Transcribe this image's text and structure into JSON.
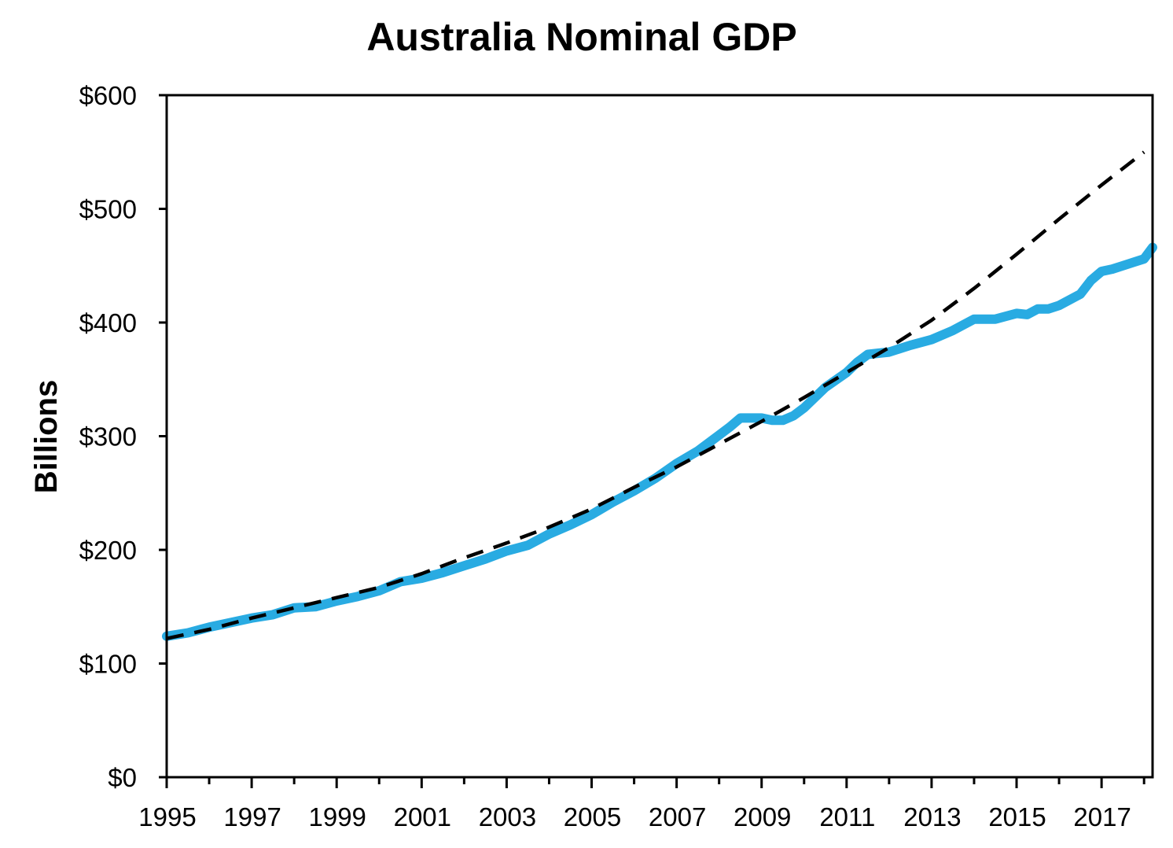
{
  "chart_data": {
    "type": "line",
    "title": "Australia Nominal GDP",
    "xlabel": "",
    "ylabel": "Billions",
    "xlim": [
      1995,
      2018.2
    ],
    "ylim": [
      0,
      600
    ],
    "y_ticks": [
      0,
      100,
      200,
      300,
      400,
      500,
      600
    ],
    "y_tick_labels": [
      "$0",
      "$100",
      "$200",
      "$300",
      "$400",
      "$500",
      "$600"
    ],
    "x_ticks": [
      1995,
      1997,
      1999,
      2001,
      2003,
      2005,
      2007,
      2009,
      2011,
      2013,
      2015,
      2017
    ],
    "x_tick_labels": [
      "1995",
      "1997",
      "1999",
      "2001",
      "2003",
      "2005",
      "2007",
      "2009",
      "2011",
      "2013",
      "2015",
      "2017"
    ],
    "legend": "none",
    "grid": false,
    "series": [
      {
        "style": "solid",
        "color": "#29abe2",
        "x": [
          1995.0,
          1995.5,
          1996.0,
          1996.5,
          1997.0,
          1997.5,
          1998.0,
          1998.5,
          1999.0,
          1999.5,
          2000.0,
          2000.5,
          2001.0,
          2001.5,
          2002.0,
          2002.5,
          2003.0,
          2003.5,
          2004.0,
          2004.5,
          2005.0,
          2005.5,
          2006.0,
          2006.5,
          2007.0,
          2007.5,
          2008.0,
          2008.25,
          2008.5,
          2008.75,
          2009.0,
          2009.25,
          2009.5,
          2009.75,
          2010.0,
          2010.5,
          2011.0,
          2011.25,
          2011.5,
          2011.75,
          2012.0,
          2012.5,
          2013.0,
          2013.5,
          2014.0,
          2014.5,
          2015.0,
          2015.25,
          2015.5,
          2015.75,
          2016.0,
          2016.5,
          2016.75,
          2017.0,
          2017.25,
          2017.5,
          2017.75,
          2018.0,
          2018.2
        ],
        "values": [
          124,
          127,
          132,
          136,
          140,
          143,
          149,
          150,
          155,
          159,
          164,
          172,
          175,
          180,
          186,
          192,
          199,
          204,
          214,
          222,
          231,
          242,
          252,
          263,
          276,
          287,
          301,
          308,
          316,
          316,
          316,
          314,
          314,
          318,
          325,
          343,
          356,
          365,
          372,
          373,
          374,
          380,
          385,
          393,
          403,
          403,
          408,
          407,
          412,
          412,
          415,
          425,
          437,
          445,
          447,
          450,
          453,
          456,
          466
        ]
      },
      {
        "style": "dashed",
        "color": "#000000",
        "x": [
          1995,
          1996,
          1997,
          1998,
          1999,
          2000,
          2001,
          2002,
          2003,
          2004,
          2005,
          2006,
          2007,
          2008,
          2009,
          2010,
          2011,
          2012,
          2013,
          2014,
          2015,
          2016,
          2017,
          2018
        ],
        "values": [
          122,
          130,
          140,
          149,
          158,
          167,
          179,
          193,
          206,
          220,
          236,
          255,
          273,
          293,
          313,
          334,
          356,
          378,
          402,
          430,
          460,
          491,
          521,
          550
        ]
      }
    ]
  }
}
